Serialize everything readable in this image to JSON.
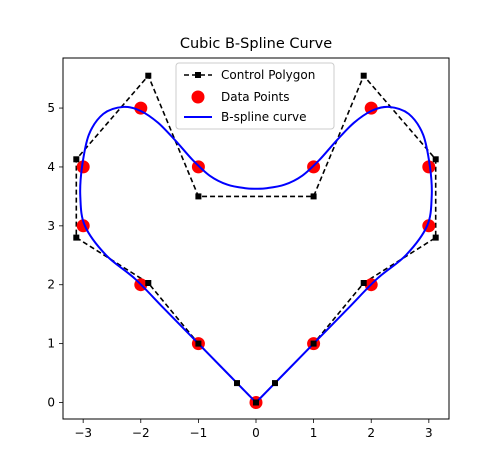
{
  "chart_data": {
    "type": "line",
    "title": "Cubic B-Spline Curve",
    "xlabel": "",
    "ylabel": "",
    "xlim": [
      -3.35,
      3.35
    ],
    "ylim": [
      -0.28,
      5.85
    ],
    "xticks": [
      -3,
      -2,
      -1,
      0,
      1,
      2,
      3
    ],
    "yticks": [
      0,
      1,
      2,
      3,
      4,
      5
    ],
    "grid": false,
    "legend_position": "top-center",
    "series": [
      {
        "name": "Control Polygon",
        "style": "dashed-line-with-square-markers",
        "color": "#000000",
        "x": [
          0,
          0.33,
          1.0,
          1.87,
          3.12,
          3.12,
          1.87,
          1.0,
          -1.0,
          -1.87,
          -3.12,
          -3.12,
          -1.87,
          -1.0,
          -0.33,
          0
        ],
        "y": [
          0,
          0.33,
          1.0,
          2.03,
          2.8,
          4.13,
          5.55,
          3.5,
          3.5,
          5.55,
          4.13,
          2.8,
          2.03,
          1.0,
          0.33,
          0
        ]
      },
      {
        "name": "Data Points",
        "style": "scatter",
        "color": "#ff0000",
        "x": [
          0,
          1,
          2,
          3,
          3,
          2,
          1,
          -1,
          -2,
          -3,
          -3,
          -2,
          -1
        ],
        "y": [
          0,
          1,
          2,
          3,
          4,
          5,
          4,
          4,
          5,
          4,
          3,
          2,
          1
        ]
      },
      {
        "name": "B-spline curve",
        "style": "solid-line",
        "color": "#0000ff",
        "x": [
          0,
          0.45,
          1.0,
          1.6,
          2.1,
          2.6,
          2.97,
          3.05,
          3.02,
          2.9,
          2.65,
          2.3,
          2.0,
          1.7,
          1.4,
          1.1,
          0.8,
          0.5,
          0.2,
          0,
          -0.2,
          -0.5,
          -0.8,
          -1.1,
          -1.4,
          -1.7,
          -2.0,
          -2.3,
          -2.65,
          -2.9,
          -3.02,
          -3.05,
          -2.97,
          -2.6,
          -2.1,
          -1.6,
          -1.0,
          -0.45,
          0
        ],
        "y": [
          0,
          0.45,
          1.0,
          1.6,
          2.1,
          2.5,
          3.0,
          3.5,
          4.0,
          4.55,
          4.9,
          5.02,
          4.95,
          4.75,
          4.45,
          4.12,
          3.85,
          3.7,
          3.64,
          3.63,
          3.64,
          3.7,
          3.85,
          4.12,
          4.45,
          4.75,
          4.95,
          5.02,
          4.9,
          4.55,
          4.0,
          3.5,
          3.0,
          2.5,
          2.1,
          1.6,
          1.0,
          0.45,
          0
        ]
      }
    ]
  }
}
